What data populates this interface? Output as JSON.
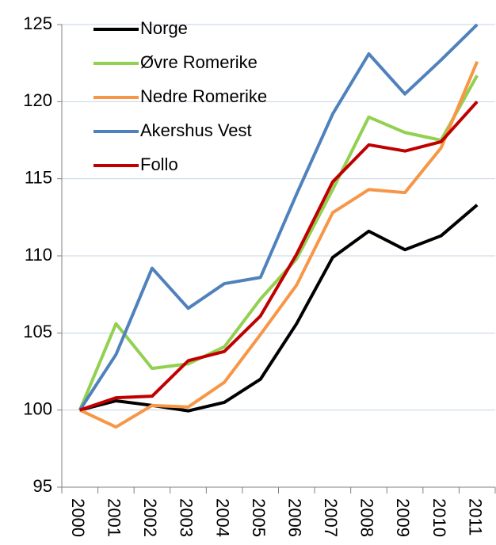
{
  "chart_data": {
    "type": "line",
    "categories": [
      "2000",
      "2001",
      "2002",
      "2003",
      "2004",
      "2005",
      "2006",
      "2007",
      "2008",
      "2009",
      "2010",
      "2011"
    ],
    "series": [
      {
        "name": "Norge",
        "color": "#000000",
        "values": [
          100,
          100.6,
          100.3,
          99.95,
          100.5,
          102.0,
          105.6,
          109.9,
          111.6,
          110.4,
          111.3,
          113.3
        ]
      },
      {
        "name": "Øvre Romerike",
        "color": "#92d050",
        "values": [
          100,
          105.6,
          102.7,
          103.0,
          104.1,
          107.2,
          109.8,
          114.3,
          119.0,
          118.0,
          117.5,
          121.7
        ]
      },
      {
        "name": "Nedre Romerike",
        "color": "#f79646",
        "values": [
          100,
          98.9,
          100.3,
          100.2,
          101.8,
          104.9,
          108.1,
          112.8,
          114.3,
          114.1,
          117.0,
          122.6
        ]
      },
      {
        "name": "Akershus Vest",
        "color": "#4f81bd",
        "values": [
          100,
          103.6,
          109.2,
          106.6,
          108.2,
          108.6,
          114.0,
          119.2,
          123.1,
          120.5,
          122.7,
          125.0
        ]
      },
      {
        "name": "Follo",
        "color": "#c00000",
        "values": [
          100,
          100.8,
          100.9,
          103.2,
          103.8,
          106.1,
          110.1,
          114.8,
          117.2,
          116.8,
          117.4,
          120.0
        ]
      }
    ],
    "ylim": [
      95,
      125
    ],
    "yticks": [
      95,
      100,
      105,
      110,
      115,
      120,
      125
    ],
    "grid": true,
    "legend": "upper left"
  }
}
